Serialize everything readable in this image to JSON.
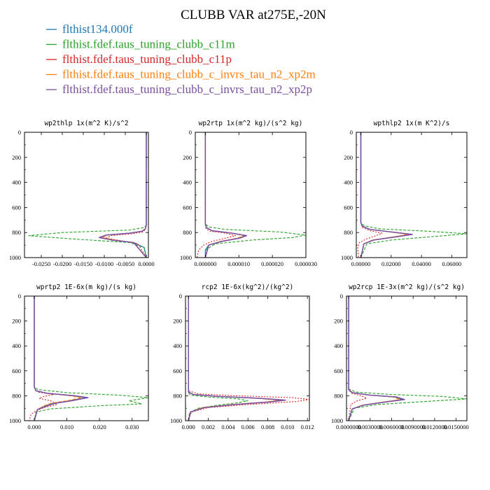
{
  "figure": {
    "title": "CLUBB VAR at275E,-20N"
  },
  "legend": [
    {
      "label": "flthist134.000f",
      "color": "#1f77b4"
    },
    {
      "label": "flthist.fdef.taus_tuning_clubb_c11m",
      "color": "#2ca02c"
    },
    {
      "label": "flthist.fdef.taus_tuning_clubb_c11p",
      "color": "#d62728"
    },
    {
      "label": "flthist.fdef.taus_tuning_clubb_c_invrs_tau_n2_xp2m",
      "color": "#ff7f0e"
    },
    {
      "label": "flthist.fdef.taus_tuning_clubb_c_invrs_tau_n2_xp2p",
      "color": "#7b4fa0"
    }
  ],
  "chart_data": [
    {
      "type": "line",
      "title": "wp2thlp  1x(m^2 K)/s^2",
      "xlim": [
        -0.029,
        0.0005
      ],
      "ylim": [
        1000,
        0
      ],
      "xticks": [
        "-0.0250",
        "-0.0200",
        "-0.0150",
        "-0.0100",
        "-0.0050",
        "0.0000"
      ],
      "xtick_values": [
        -0.025,
        -0.02,
        -0.015,
        -0.01,
        -0.005,
        0
      ],
      "yticks": [
        "0",
        "200",
        "400",
        "600",
        "800",
        "1000"
      ],
      "series": [
        {
          "name": "flthist134.000f",
          "x": [
            0,
            0,
            -0.0002,
            -0.001,
            -0.004,
            -0.0095,
            -0.011,
            -0.008,
            -0.003,
            -0.0005,
            0
          ],
          "y": [
            0,
            740,
            770,
            790,
            805,
            820,
            840,
            860,
            880,
            920,
            1000
          ]
        },
        {
          "name": "flthist.fdef.taus_tuning_clubb_c11m",
          "x": [
            0,
            0,
            -0.0005,
            -0.004,
            -0.02,
            -0.028,
            -0.018,
            -0.004,
            -0.0005,
            0
          ],
          "y": [
            0,
            740,
            760,
            780,
            800,
            825,
            850,
            880,
            920,
            1000
          ]
        },
        {
          "name": "flthist.fdef.taus_tuning_clubb_c11p",
          "x": [
            0,
            0,
            -0.0002,
            -0.0008,
            -0.0035,
            -0.0085,
            -0.0095,
            -0.006,
            -0.002,
            0
          ],
          "y": [
            0,
            745,
            775,
            795,
            810,
            825,
            845,
            865,
            890,
            1000
          ]
        },
        {
          "name": "flthist.fdef.taus_tuning_clubb_c_invrs_tau_n2_xp2m",
          "x": [
            0,
            0,
            -0.0002,
            -0.001,
            -0.004,
            -0.0093,
            -0.0105,
            -0.0075,
            -0.003,
            0
          ],
          "y": [
            0,
            740,
            770,
            790,
            805,
            820,
            840,
            860,
            880,
            1000
          ]
        },
        {
          "name": "flthist.fdef.taus_tuning_clubb_c_invrs_tau_n2_xp2p",
          "x": [
            0,
            0,
            -0.0002,
            -0.001,
            -0.004,
            -0.0096,
            -0.0112,
            -0.0082,
            -0.003,
            0
          ],
          "y": [
            0,
            740,
            770,
            790,
            805,
            820,
            840,
            860,
            880,
            1000
          ]
        }
      ]
    },
    {
      "type": "line",
      "title": "wp2rtp  1x(m^2 kg)/(s^2 kg)",
      "xlim": [
        -3e-06,
        3e-05
      ],
      "ylim": [
        1000,
        0
      ],
      "xticks": [
        "0.000000",
        "0.000010",
        "0.000020",
        "0.000030"
      ],
      "xtick_values": [
        0,
        1e-05,
        2e-05,
        3e-05
      ],
      "yticks": [
        "0",
        "200",
        "400",
        "600",
        "800",
        "1000"
      ],
      "series": [
        {
          "name": "flthist134.000f",
          "x": [
            0,
            0,
            3e-07,
            2e-06,
            8e-06,
            1.2e-05,
            1e-05,
            5e-06,
            1e-06,
            0,
            0
          ],
          "y": [
            0,
            730,
            760,
            785,
            805,
            825,
            845,
            870,
            900,
            940,
            1000
          ]
        },
        {
          "name": "flthist.fdef.taus_tuning_clubb_c11m",
          "x": [
            0,
            0,
            1e-06,
            6e-06,
            2.2e-05,
            3e-05,
            2.6e-05,
            1.4e-05,
            3e-06,
            5e-07,
            0
          ],
          "y": [
            0,
            730,
            755,
            775,
            795,
            820,
            840,
            860,
            890,
            930,
            1000
          ]
        },
        {
          "name": "flthist.fdef.taus_tuning_clubb_c11p",
          "x": [
            0,
            0,
            2e-07,
            1.5e-06,
            6e-06,
            9e-06,
            6e-06,
            2e-06,
            -5e-07,
            -2e-06,
            -2.5e-06
          ],
          "y": [
            0,
            740,
            770,
            790,
            805,
            825,
            845,
            870,
            900,
            940,
            1000
          ]
        },
        {
          "name": "flthist.fdef.taus_tuning_clubb_c_invrs_tau_n2_xp2m",
          "x": [
            0,
            0,
            3e-07,
            2e-06,
            8e-06,
            1.15e-05,
            9.5e-06,
            4.5e-06,
            1e-06,
            0
          ],
          "y": [
            0,
            730,
            760,
            785,
            805,
            825,
            845,
            870,
            900,
            1000
          ]
        },
        {
          "name": "flthist.fdef.taus_tuning_clubb_c_invrs_tau_n2_xp2p",
          "x": [
            0,
            0,
            3e-07,
            2e-06,
            8e-06,
            1.23e-05,
            1.02e-05,
            5e-06,
            1e-06,
            0
          ],
          "y": [
            0,
            730,
            760,
            785,
            805,
            825,
            845,
            870,
            900,
            1000
          ]
        }
      ]
    },
    {
      "type": "line",
      "title": "wpthlp2  1x(m K^2)/s",
      "xlim": [
        -0.003,
        0.07
      ],
      "ylim": [
        1000,
        0
      ],
      "xticks": [
        "0.00000",
        "0.02000",
        "0.04000",
        "0.06000"
      ],
      "xtick_values": [
        0,
        0.02,
        0.04,
        0.06
      ],
      "yticks": [
        "0",
        "200",
        "400",
        "600",
        "800",
        "1000"
      ],
      "series": [
        {
          "name": "flthist134.000f",
          "x": [
            0,
            0,
            0.001,
            0.006,
            0.02,
            0.033,
            0.022,
            0.008,
            0.002,
            0
          ],
          "y": [
            0,
            720,
            750,
            775,
            795,
            815,
            835,
            860,
            890,
            1000
          ]
        },
        {
          "name": "flthist.fdef.taus_tuning_clubb_c11m",
          "x": [
            0,
            0,
            0.002,
            0.012,
            0.045,
            0.07,
            0.05,
            0.02,
            0.004,
            0
          ],
          "y": [
            0,
            720,
            745,
            770,
            790,
            810,
            830,
            860,
            890,
            1000
          ]
        },
        {
          "name": "flthist.fdef.taus_tuning_clubb_c11p",
          "x": [
            0,
            0,
            0.001,
            0.006,
            0.014,
            0.01,
            0.004,
            -0.001,
            -0.002,
            -0.0015
          ],
          "y": [
            0,
            725,
            760,
            785,
            805,
            825,
            850,
            880,
            920,
            1000
          ]
        },
        {
          "name": "flthist.fdef.taus_tuning_clubb_c_invrs_tau_n2_xp2m",
          "x": [
            0,
            0,
            0.001,
            0.006,
            0.019,
            0.031,
            0.021,
            0.0075,
            0.002,
            0
          ],
          "y": [
            0,
            720,
            750,
            775,
            795,
            815,
            835,
            860,
            890,
            1000
          ]
        },
        {
          "name": "flthist.fdef.taus_tuning_clubb_c_invrs_tau_n2_xp2p",
          "x": [
            0,
            0,
            0.001,
            0.006,
            0.02,
            0.034,
            0.023,
            0.0085,
            0.002,
            0
          ],
          "y": [
            0,
            720,
            750,
            775,
            795,
            815,
            835,
            860,
            890,
            1000
          ]
        }
      ]
    },
    {
      "type": "line",
      "title": "wprtp2  1E-6x(m kg)/(s kg)",
      "xlim": [
        -0.003,
        0.035
      ],
      "ylim": [
        1000,
        0
      ],
      "xticks": [
        "0.000",
        "0.010",
        "0.020",
        "0.030"
      ],
      "xtick_values": [
        0,
        0.01,
        0.02,
        0.03
      ],
      "yticks": [
        "0",
        "200",
        "400",
        "600",
        "800",
        "1000"
      ],
      "series": [
        {
          "name": "flthist134.000f",
          "x": [
            0,
            0,
            0.0005,
            0.004,
            0.012,
            0.016,
            0.011,
            0.006,
            0.0035,
            0.001,
            0
          ],
          "y": [
            0,
            730,
            760,
            780,
            800,
            815,
            840,
            860,
            880,
            910,
            1000
          ]
        },
        {
          "name": "flthist.fdef.taus_tuning_clubb_c11m",
          "x": [
            0,
            0,
            0.001,
            0.01,
            0.026,
            0.035,
            0.029,
            0.033,
            0.02,
            0.005,
            0.0005,
            0
          ],
          "y": [
            0,
            725,
            750,
            775,
            795,
            815,
            840,
            865,
            880,
            905,
            930,
            1000
          ]
        },
        {
          "name": "flthist.fdef.taus_tuning_clubb_c11p",
          "x": [
            0,
            0,
            0.001,
            0.006,
            0.003,
            0.0015,
            0.005,
            0.007,
            0.003,
            0.0005,
            -0.001,
            -0.0015
          ],
          "y": [
            0,
            735,
            770,
            790,
            805,
            820,
            840,
            870,
            895,
            920,
            950,
            1000
          ]
        },
        {
          "name": "flthist.fdef.taus_tuning_clubb_c_invrs_tau_n2_xp2m",
          "x": [
            0,
            0,
            0.0005,
            0.004,
            0.011,
            0.0145,
            0.01,
            0.005,
            0.003,
            0.001,
            0
          ],
          "y": [
            0,
            730,
            760,
            780,
            800,
            815,
            840,
            860,
            880,
            910,
            1000
          ]
        },
        {
          "name": "flthist.fdef.taus_tuning_clubb_c_invrs_tau_n2_xp2p",
          "x": [
            0,
            0,
            0.0005,
            0.004,
            0.0125,
            0.0165,
            0.0115,
            0.0065,
            0.004,
            0.001,
            0
          ],
          "y": [
            0,
            730,
            760,
            780,
            800,
            815,
            840,
            860,
            880,
            910,
            1000
          ]
        }
      ]
    },
    {
      "type": "line",
      "title": "rcp2  1E-6x(kg^2)/(kg^2)",
      "xlim": [
        -0.0003,
        0.0122
      ],
      "ylim": [
        1000,
        0
      ],
      "xticks": [
        "0.000",
        "0.002",
        "0.004",
        "0.006",
        "0.008",
        "0.010",
        "0.012"
      ],
      "xtick_values": [
        0,
        0.002,
        0.004,
        0.006,
        0.008,
        0.01,
        0.012
      ],
      "yticks": [
        "0",
        "200",
        "400",
        "600",
        "800",
        "1000"
      ],
      "series": [
        {
          "name": "flthist134.000f",
          "x": [
            0,
            0,
            0.0005,
            0.003,
            0.007,
            0.0095,
            0.008,
            0.0045,
            0.0015,
            0.0002,
            0
          ],
          "y": [
            0,
            770,
            790,
            805,
            820,
            835,
            850,
            870,
            895,
            930,
            1000
          ]
        },
        {
          "name": "flthist.fdef.taus_tuning_clubb_c11m",
          "x": [
            0,
            0,
            0.0002,
            0.002,
            0.005,
            0.006,
            0.005,
            0.003,
            0.001,
            0.0001,
            0
          ],
          "y": [
            0,
            775,
            795,
            810,
            825,
            840,
            855,
            875,
            900,
            935,
            1000
          ]
        },
        {
          "name": "flthist.fdef.taus_tuning_clubb_c11p",
          "x": [
            0,
            0,
            0.001,
            0.005,
            0.0105,
            0.0122,
            0.011,
            0.006,
            0.002,
            0.0003,
            0
          ],
          "y": [
            0,
            760,
            785,
            800,
            815,
            830,
            845,
            870,
            895,
            930,
            1000
          ]
        },
        {
          "name": "flthist.fdef.taus_tuning_clubb_c_invrs_tau_n2_xp2m",
          "x": [
            0,
            0,
            0.0005,
            0.003,
            0.0068,
            0.0092,
            0.0078,
            0.0043,
            0.0014,
            0.0002,
            0
          ],
          "y": [
            0,
            770,
            790,
            805,
            820,
            835,
            850,
            870,
            895,
            930,
            1000
          ]
        },
        {
          "name": "flthist.fdef.taus_tuning_clubb_c_invrs_tau_n2_xp2p",
          "x": [
            0,
            0,
            0.0005,
            0.003,
            0.0072,
            0.0098,
            0.0082,
            0.0047,
            0.0016,
            0.0002,
            0
          ],
          "y": [
            0,
            770,
            790,
            805,
            820,
            835,
            850,
            870,
            895,
            930,
            1000
          ]
        }
      ]
    },
    {
      "type": "line",
      "title": "wp2rcp  1E-3x(m^2 kg)/(s^2 kg)",
      "xlim": [
        -0.0003,
        0.0165
      ],
      "ylim": [
        1000,
        0
      ],
      "xticks": [
        "0.0000000",
        "0.0030000",
        "0.0060000",
        "0.0090000",
        "0.0120000",
        "0.0150000"
      ],
      "xtick_values": [
        0,
        0.003,
        0.006,
        0.009,
        0.012,
        0.015
      ],
      "yticks": [
        "0",
        "200",
        "400",
        "600",
        "800",
        "1000"
      ],
      "series": [
        {
          "name": "flthist134.000f",
          "x": [
            0,
            0,
            0.0005,
            0.003,
            0.0065,
            0.0075,
            0.005,
            0.002,
            0.0005,
            0
          ],
          "y": [
            0,
            750,
            775,
            795,
            810,
            830,
            850,
            875,
            905,
            1000
          ]
        },
        {
          "name": "flthist.fdef.taus_tuning_clubb_c11m",
          "x": [
            0,
            0,
            0.001,
            0.006,
            0.013,
            0.0165,
            0.011,
            0.004,
            0.0008,
            0
          ],
          "y": [
            0,
            745,
            770,
            790,
            805,
            825,
            845,
            870,
            900,
            1000
          ]
        },
        {
          "name": "flthist.fdef.taus_tuning_clubb_c11p",
          "x": [
            0,
            0,
            0.0004,
            0.0018,
            0.0025,
            0.0012,
            0.0003,
            0
          ],
          "y": [
            0,
            750,
            780,
            800,
            820,
            840,
            870,
            1000
          ]
        },
        {
          "name": "flthist.fdef.taus_tuning_clubb_c_invrs_tau_n2_xp2m",
          "x": [
            0,
            0,
            0.0005,
            0.003,
            0.0062,
            0.0072,
            0.0048,
            0.0019,
            0.0005,
            0
          ],
          "y": [
            0,
            750,
            775,
            795,
            810,
            830,
            850,
            875,
            905,
            1000
          ]
        },
        {
          "name": "flthist.fdef.taus_tuning_clubb_c_invrs_tau_n2_xp2p",
          "x": [
            0,
            0,
            0.0005,
            0.003,
            0.0067,
            0.0078,
            0.0052,
            0.0021,
            0.0005,
            0
          ],
          "y": [
            0,
            750,
            775,
            795,
            810,
            830,
            850,
            875,
            905,
            1000
          ]
        }
      ]
    }
  ]
}
